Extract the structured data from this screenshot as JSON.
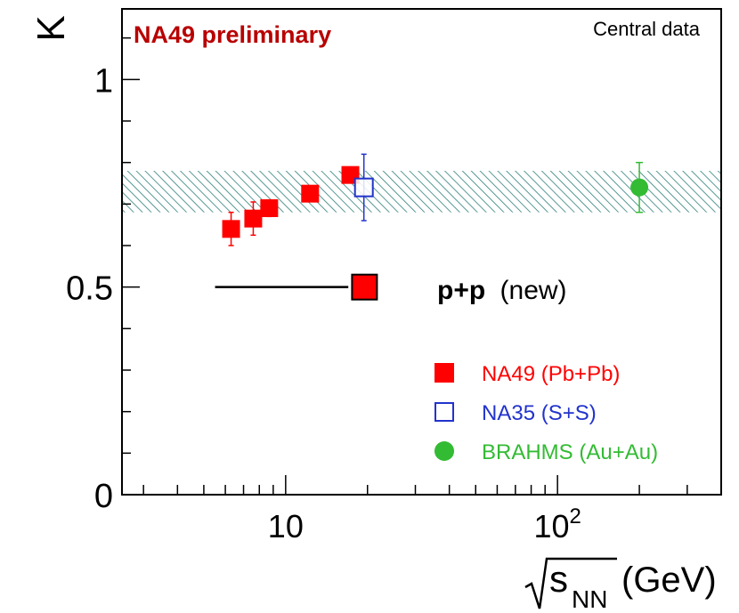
{
  "colors": {
    "na49": "#ff0000",
    "na35": "#2233cc",
    "brahms": "#33bb33",
    "band": "#2f7f7a",
    "pp": "#ff0000",
    "title": "#b80000",
    "axis": "#000000"
  },
  "chart_data": {
    "type": "scatter",
    "title": "NA49 preliminary",
    "subtitle": "Central data",
    "ylabel": "K",
    "xlabel_sqrt": "s",
    "xlabel_sub": "NN",
    "xlabel_unit": "(GeV)",
    "xscale": "log",
    "xlim": [
      2.5,
      400
    ],
    "ylim": [
      0,
      1.17
    ],
    "y_ticks": [
      {
        "value": 0,
        "label": "0"
      },
      {
        "value": 0.5,
        "label": "0.5"
      },
      {
        "value": 1,
        "label": "1"
      }
    ],
    "x_ticks": [
      {
        "value": 10,
        "label": "10"
      },
      {
        "value": 100,
        "label": "10",
        "sup": "2"
      }
    ],
    "band": {
      "y_low": 0.68,
      "y_high": 0.78,
      "x_from": 2.5,
      "x_to": 400
    },
    "series": [
      {
        "name": "NA49 (Pb+Pb)",
        "marker": "filled-square",
        "points": [
          {
            "x": 6.3,
            "y": 0.64,
            "err": 0.04
          },
          {
            "x": 7.6,
            "y": 0.665,
            "err": 0.04
          },
          {
            "x": 8.7,
            "y": 0.69,
            "err": 0.02
          },
          {
            "x": 12.3,
            "y": 0.725,
            "err": 0.01
          },
          {
            "x": 17.3,
            "y": 0.77,
            "err": 0.01
          }
        ]
      },
      {
        "name": "NA35 (S+S)",
        "marker": "open-square",
        "points": [
          {
            "x": 19.4,
            "y": 0.74,
            "err": 0.08
          }
        ]
      },
      {
        "name": "BRAHMS (Au+Au)",
        "marker": "filled-circle",
        "points": [
          {
            "x": 200,
            "y": 0.74,
            "err": 0.06
          }
        ]
      }
    ],
    "pp": {
      "label_bold": "p+p",
      "label_rest": "(new)",
      "x": 19.5,
      "y": 0.5,
      "line_from": 5.5,
      "line_to": 17
    }
  }
}
